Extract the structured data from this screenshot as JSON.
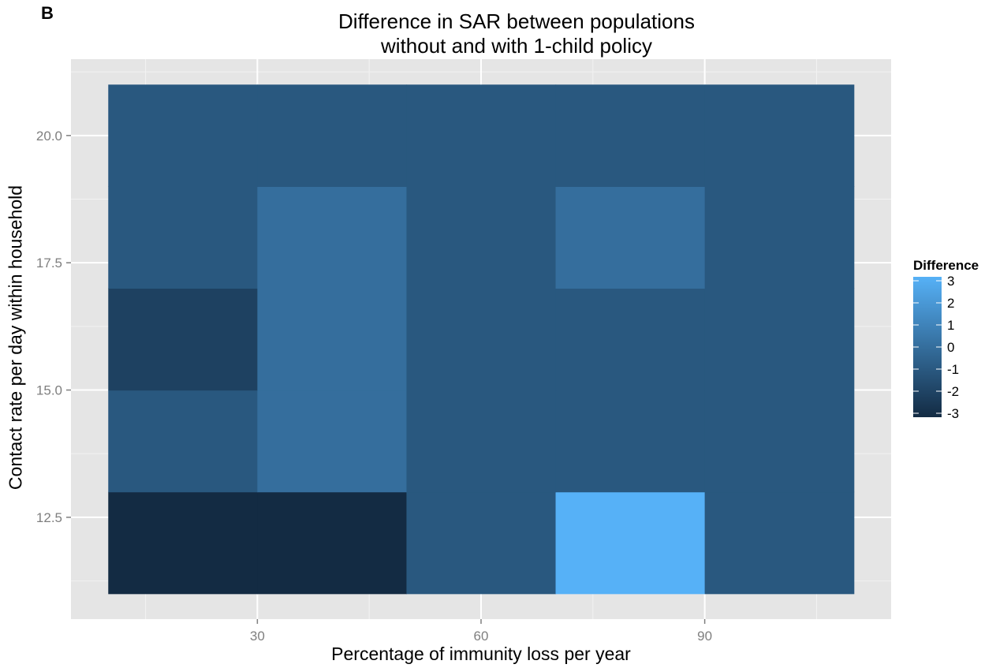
{
  "panel_label": "B",
  "chart_data": {
    "type": "heatmap",
    "title_lines": [
      "Difference in SAR between populations",
      "without and with 1-child policy"
    ],
    "xlabel": "Percentage of immunity loss per year",
    "ylabel": "Contact rate per day within household",
    "x_ticks": [
      30,
      60,
      90
    ],
    "x_tick_labels": [
      "30",
      "60",
      "90"
    ],
    "y_ticks": [
      12.5,
      15.0,
      17.5,
      20.0
    ],
    "y_tick_labels": [
      "12.5",
      "15.0",
      "17.5",
      "20.0"
    ],
    "xlim": [
      5,
      115
    ],
    "ylim": [
      10.5,
      21.5
    ],
    "grid": true,
    "x_centers": [
      20,
      40,
      60,
      80,
      100
    ],
    "y_centers": [
      12,
      14,
      16,
      18,
      20
    ],
    "cell_width": 20,
    "cell_height": 2,
    "cells": [
      {
        "x": 20,
        "y": 12,
        "value": -3
      },
      {
        "x": 40,
        "y": 12,
        "value": -3
      },
      {
        "x": 60,
        "y": 12,
        "value": -1
      },
      {
        "x": 80,
        "y": 12,
        "value": 3
      },
      {
        "x": 100,
        "y": 12,
        "value": -1
      },
      {
        "x": 20,
        "y": 14,
        "value": -1
      },
      {
        "x": 40,
        "y": 14,
        "value": 0
      },
      {
        "x": 60,
        "y": 14,
        "value": -1
      },
      {
        "x": 80,
        "y": 14,
        "value": -1
      },
      {
        "x": 100,
        "y": 14,
        "value": -1
      },
      {
        "x": 20,
        "y": 16,
        "value": -2
      },
      {
        "x": 40,
        "y": 16,
        "value": 0
      },
      {
        "x": 60,
        "y": 16,
        "value": -1
      },
      {
        "x": 80,
        "y": 16,
        "value": -1
      },
      {
        "x": 100,
        "y": 16,
        "value": -1
      },
      {
        "x": 20,
        "y": 18,
        "value": -1
      },
      {
        "x": 40,
        "y": 18,
        "value": 0
      },
      {
        "x": 60,
        "y": 18,
        "value": -1
      },
      {
        "x": 80,
        "y": 18,
        "value": 0
      },
      {
        "x": 100,
        "y": 18,
        "value": -1
      },
      {
        "x": 20,
        "y": 20,
        "value": -1
      },
      {
        "x": 40,
        "y": 20,
        "value": -1
      },
      {
        "x": 60,
        "y": 20,
        "value": -1
      },
      {
        "x": 80,
        "y": 20,
        "value": -1
      },
      {
        "x": 100,
        "y": 20,
        "value": -1
      }
    ],
    "legend": {
      "title": "Difference",
      "position": "right",
      "min": -3,
      "max": 3,
      "labels": [
        "3",
        "2",
        "1",
        "0",
        "-1",
        "-2",
        "-3"
      ],
      "label_values": [
        3,
        2,
        1,
        0,
        -1,
        -2,
        -3
      ]
    },
    "colors": {
      "low": "#132B43",
      "high": "#56B1F7",
      "panel_background": "#E5E5E5",
      "grid_major": "#FFFFFF",
      "grid_minor": "#F2F2F2",
      "tick_text": "#7F7F7F"
    }
  }
}
